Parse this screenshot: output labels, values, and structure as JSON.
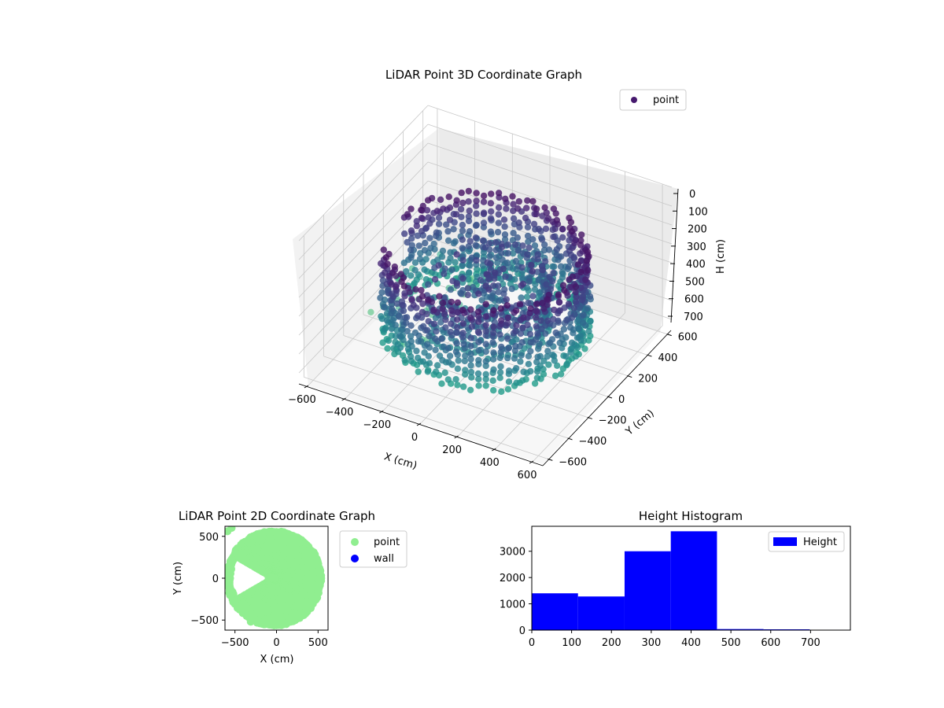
{
  "chart_data": [
    {
      "type": "scatter",
      "title": "LiDAR Point 3D Coordinate Graph",
      "projection": "3d",
      "xlabel": "X (cm)",
      "ylabel": "Y (cm)",
      "zlabel": "H (cm)",
      "x_ticks": [
        "−600",
        "−400",
        "−200",
        "0",
        "200",
        "400",
        "600"
      ],
      "y_ticks": [
        "600",
        "400",
        "200",
        "0",
        "−200",
        "−400",
        "−600"
      ],
      "z_ticks": [
        "0",
        "100",
        "200",
        "300",
        "400",
        "500",
        "600",
        "700"
      ],
      "xlim": [
        -650,
        650
      ],
      "ylim": [
        -650,
        650
      ],
      "zlim": [
        0,
        750
      ],
      "z_axis_inverted": true,
      "legend": {
        "entries": [
          "point"
        ],
        "placement": "top-right"
      },
      "colormap": "viridis",
      "grid": true,
      "description_of_data": "dense ring of points at radius approximately 350-550 cm forming a cylindrical wall, with interior clutter and scattered outliers",
      "series": [
        {
          "name": "point",
          "ring_radius_range": [
            350,
            560
          ],
          "height_range": [
            0,
            700
          ]
        }
      ]
    },
    {
      "type": "scatter",
      "title": "LiDAR Point 2D Coordinate Graph",
      "xlabel": "X (cm)",
      "ylabel": "Y (cm)",
      "x_ticks": [
        "−500",
        "0",
        "500"
      ],
      "y_ticks": [
        "500",
        "0",
        "−500"
      ],
      "xlim": [
        -620,
        620
      ],
      "ylim": [
        -620,
        620
      ],
      "legend": {
        "entries": [
          "point",
          "wall"
        ],
        "placement": "outside-right"
      },
      "series": [
        {
          "name": "point",
          "color": "#90ee90"
        },
        {
          "name": "wall",
          "color": "#0000ff"
        }
      ]
    },
    {
      "type": "bar",
      "title": "Height Histogram",
      "x_ticks": [
        "0",
        "100",
        "200",
        "300",
        "400",
        "500",
        "600",
        "700"
      ],
      "y_ticks": [
        "0",
        "1000",
        "2000",
        "3000"
      ],
      "xlim": [
        0,
        800
      ],
      "ylim": [
        0,
        3950
      ],
      "legend": {
        "entries": [
          "Height"
        ],
        "placement": "top-right"
      },
      "series": [
        {
          "name": "Height",
          "color": "#0000ff",
          "bins": [
            0,
            116,
            233,
            349,
            465,
            582,
            698,
            815
          ],
          "values": [
            1400,
            1280,
            3000,
            3760,
            40,
            30,
            15
          ]
        }
      ]
    }
  ]
}
